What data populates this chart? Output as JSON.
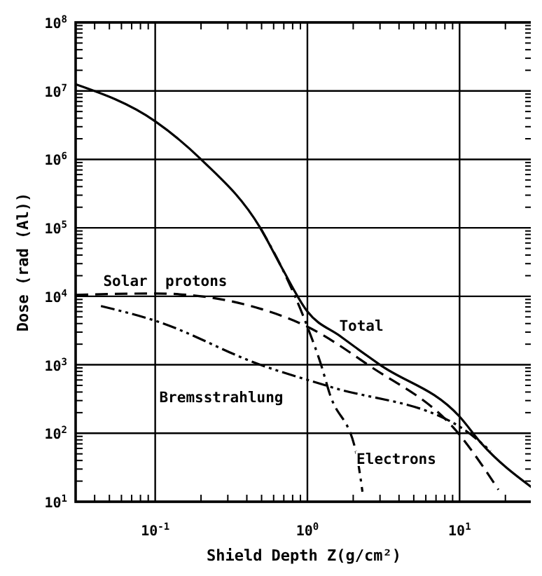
{
  "chart_data": {
    "type": "line",
    "xlabel": "Shield Depth Z(g/cm²)",
    "ylabel": "Dose (rad (Al))",
    "log": "xy",
    "grid": true,
    "xlim": [
      0.03,
      30
    ],
    "ylim": [
      10,
      100000000
    ],
    "xticks": [
      {
        "value": 0.1,
        "label": "10$^{-1}$"
      },
      {
        "value": 1,
        "label": "10$^{0}$"
      },
      {
        "value": 10,
        "label": "10$^{1}$"
      }
    ],
    "yticks": [
      {
        "value": 10,
        "label": "10$^{1}$"
      },
      {
        "value": 100,
        "label": "10$^{2}$"
      },
      {
        "value": 1000,
        "label": "10$^{3}$"
      },
      {
        "value": 10000,
        "label": "10$^{4}$"
      },
      {
        "value": 100000,
        "label": "10$^{5}$"
      },
      {
        "value": 1000000,
        "label": "10$^{6}$"
      },
      {
        "value": 10000000,
        "label": "10$^{7}$"
      },
      {
        "value": 100000000,
        "label": "10$^{8}$"
      }
    ],
    "series": [
      {
        "name": "Total",
        "color": "#000000",
        "line_style": "solid",
        "x": [
          0.03,
          0.1,
          0.2,
          0.49,
          0.68,
          1.0,
          1.65,
          3.0,
          10,
          14,
          30
        ],
        "values": [
          12500000,
          3600000,
          1000000,
          100000,
          26000,
          6000,
          2600,
          1000,
          175,
          70,
          16
        ]
      },
      {
        "name": "Solar  protons",
        "color": "#000000",
        "line_style": "dashed",
        "x": [
          0.03,
          0.1,
          0.23,
          0.5,
          1.0,
          2.5,
          10,
          18
        ],
        "values": [
          10500,
          11000,
          9600,
          6500,
          3600,
          1000,
          95,
          15
        ]
      },
      {
        "name": "Electrons",
        "color": "#000000",
        "line_style": "dashdot",
        "x": [
          0.49,
          0.68,
          1.0,
          1.23,
          1.4,
          2.1,
          2.3
        ],
        "values": [
          100000,
          26000,
          3600,
          1000,
          380,
          50,
          14
        ]
      },
      {
        "name": "Bremsstrahlung",
        "color": "#000000",
        "line_style": "dashdotdot",
        "x": [
          0.044,
          0.1,
          0.49,
          1.4,
          10,
          16
        ],
        "values": [
          7200,
          4400,
          1000,
          480,
          125,
          55
        ]
      }
    ]
  }
}
